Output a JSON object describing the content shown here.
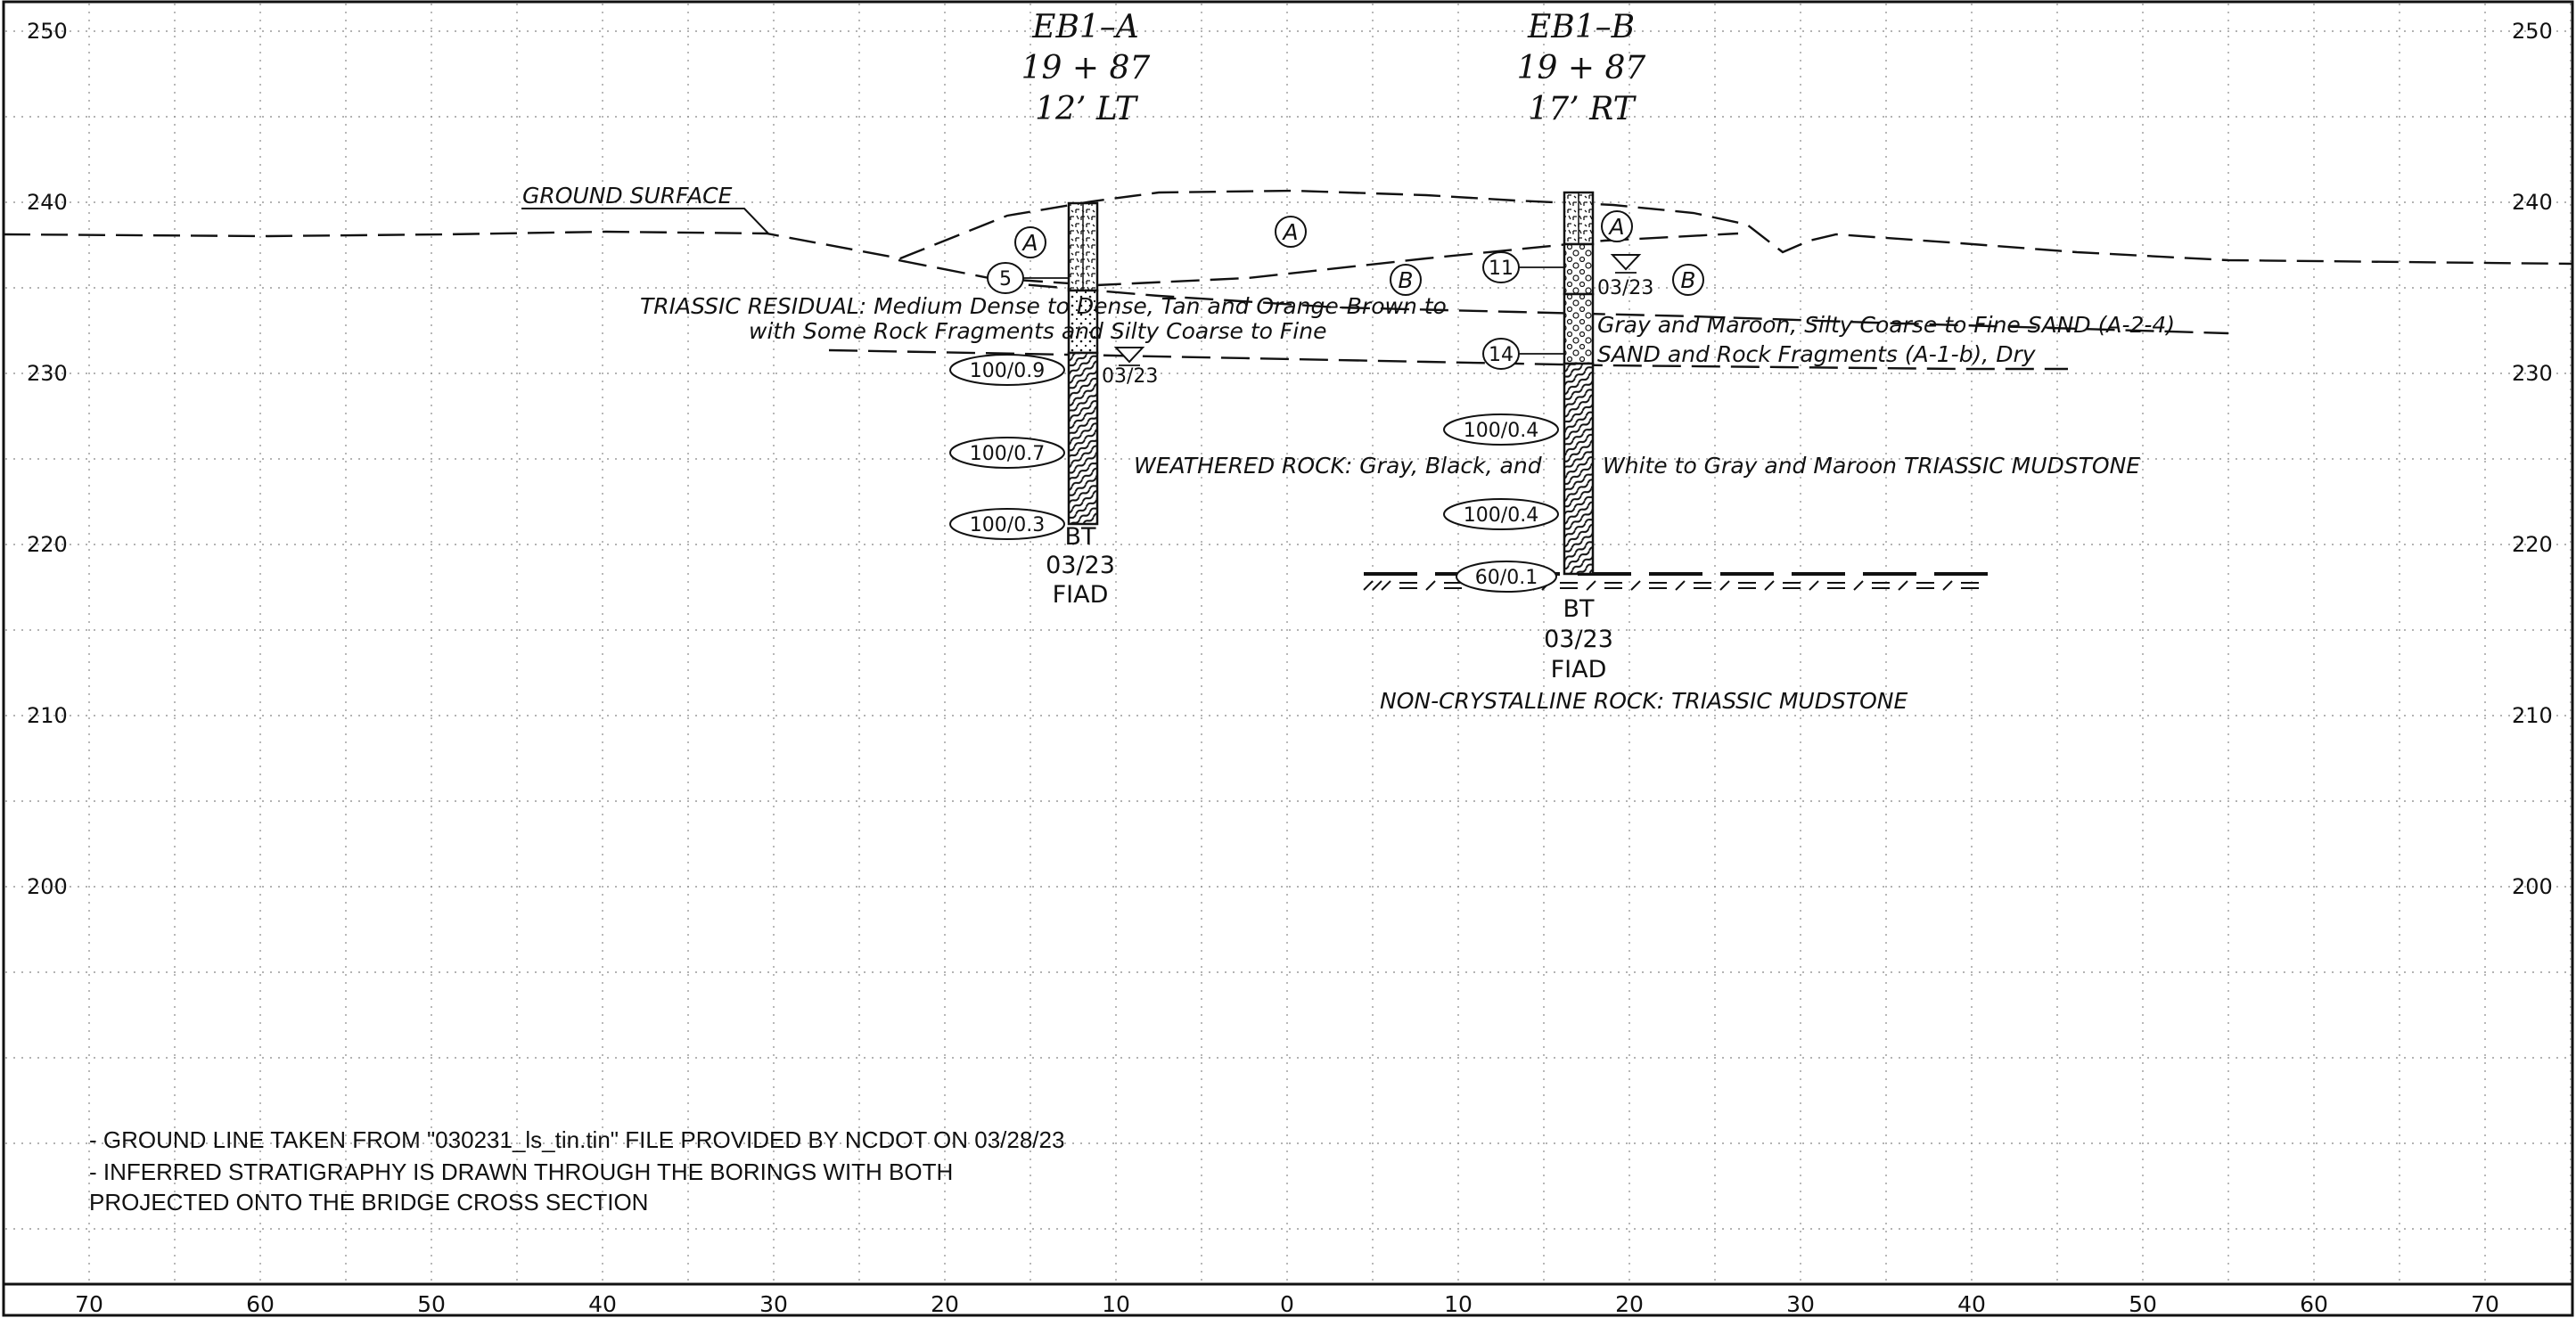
{
  "elevation_labels": [
    "250",
    "240",
    "230",
    "220",
    "210",
    "200"
  ],
  "offset_labels": [
    "70",
    "60",
    "50",
    "40",
    "30",
    "20",
    "10",
    "0",
    "10",
    "20",
    "30",
    "40",
    "50",
    "60",
    "70"
  ],
  "borings": [
    {
      "name": "EB1–A",
      "station": "19 + 87",
      "offset": "12’ LT",
      "spt_values": [
        "5",
        "100/0.9",
        "100/0.7",
        "100/0.3"
      ],
      "water_date": "03/23",
      "termination": [
        "BT",
        "03/23",
        "FIAD"
      ]
    },
    {
      "name": "EB1–B",
      "station": "19 + 87",
      "offset": "17’ RT",
      "spt_values": [
        "11",
        "14",
        "100/0.4",
        "100/0.4",
        "60/0.1"
      ],
      "water_date": "03/23",
      "termination": [
        "BT",
        "03/23",
        "FIAD"
      ]
    }
  ],
  "stratum_symbols": [
    "A",
    "A",
    "A",
    "B",
    "B"
  ],
  "labels": {
    "ground_surface": "GROUND SURFACE",
    "residual_line1": "TRIASSIC RESIDUAL: Medium Dense to Dense, Tan and Orange-Brown to",
    "residual_line1b": "Gray and Maroon, Silty Coarse to Fine SAND (A-2-4)",
    "residual_line2": "with Some Rock Fragments and Silty Coarse to Fine",
    "residual_line2b": "SAND and Rock Fragments (A-1-b), Dry",
    "weathered_rock_a": "WEATHERED ROCK: Gray, Black, and",
    "weathered_rock_b": "White to Gray and Maroon TRIASSIC MUDSTONE",
    "noncrystalline": "NON-CRYSTALLINE ROCK: TRIASSIC MUDSTONE"
  },
  "notes": [
    "- GROUND LINE TAKEN FROM \"030231_ls_tin.tin\"  FILE PROVIDED BY NCDOT ON 03/28/23",
    "- INFERRED STRATIGRAPHY IS DRAWN THROUGH  THE BORINGS WITH BOTH",
    "PROJECTED ONTO THE BRIDGE CROSS SECTION"
  ]
}
